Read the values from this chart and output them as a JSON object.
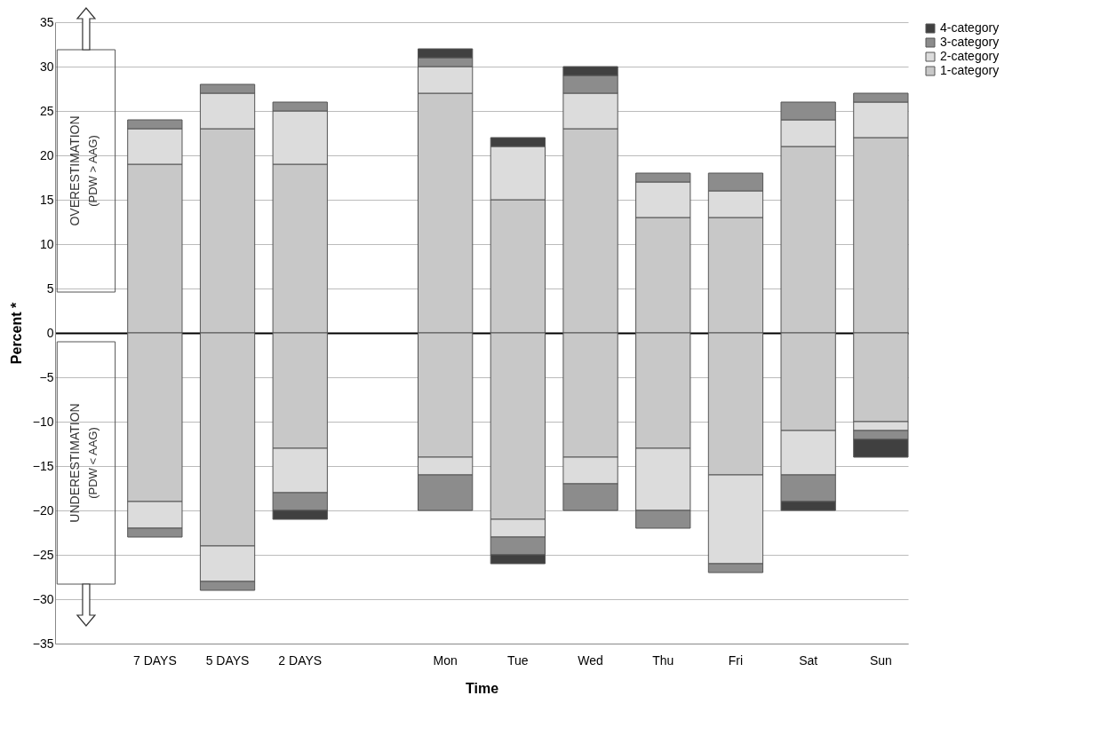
{
  "chart_data": {
    "type": "bar",
    "stacked": true,
    "xlabel": "Time",
    "ylabel": "Percent *",
    "categories": [
      null,
      "7 DAYS",
      "5 DAYS",
      "2 DAYS",
      null,
      "Mon",
      "Tue",
      "Wed",
      "Thu",
      "Fri",
      "Sat",
      "Sun"
    ],
    "series": [
      {
        "name": "1-category",
        "color": "#c8c8c8",
        "values": [
          null,
          19,
          23,
          19,
          null,
          27,
          15,
          23,
          13,
          13,
          21,
          22
        ]
      },
      {
        "name": "2-category",
        "color": "#dcdcdc",
        "values": [
          null,
          4,
          4,
          6,
          null,
          3,
          6,
          4,
          4,
          3,
          3,
          4
        ]
      },
      {
        "name": "3-category",
        "color": "#8c8c8c",
        "values": [
          null,
          1,
          1,
          1,
          null,
          1,
          null,
          2,
          1,
          2,
          2,
          1
        ]
      },
      {
        "name": "4-category",
        "color": "#404040",
        "values": [
          null,
          null,
          null,
          null,
          null,
          1,
          1,
          1,
          null,
          null,
          null,
          null
        ]
      },
      {
        "color": "#c8c8c8",
        "values": [
          null,
          -19,
          -24,
          -13,
          null,
          -14,
          -21,
          -14,
          -13,
          -16,
          -11,
          -10
        ]
      },
      {
        "color": "#dcdcdc",
        "values": [
          null,
          -3,
          -4,
          -5,
          null,
          -2,
          -2,
          -3,
          -7,
          -10,
          -5,
          -1
        ]
      },
      {
        "color": "#8c8c8c",
        "values": [
          null,
          -1,
          -1,
          -2,
          null,
          -4,
          -2,
          -3,
          -2,
          -1,
          -3,
          -1
        ]
      },
      {
        "color": "#404040",
        "values": [
          null,
          null,
          null,
          -1,
          null,
          null,
          -1,
          null,
          null,
          null,
          -1,
          -2
        ]
      }
    ],
    "ylim": [
      -35,
      35
    ],
    "yticks": [
      -35,
      -30,
      -25,
      -20,
      -15,
      -10,
      -5,
      0,
      5,
      10,
      15,
      20,
      25,
      30,
      35
    ],
    "grid": "y",
    "legend": "top right",
    "annotations": [
      "OVERESTIMATION",
      "(PDW > AAG)",
      "UNDERESTIMATION",
      "(PDW < AAG)"
    ]
  }
}
